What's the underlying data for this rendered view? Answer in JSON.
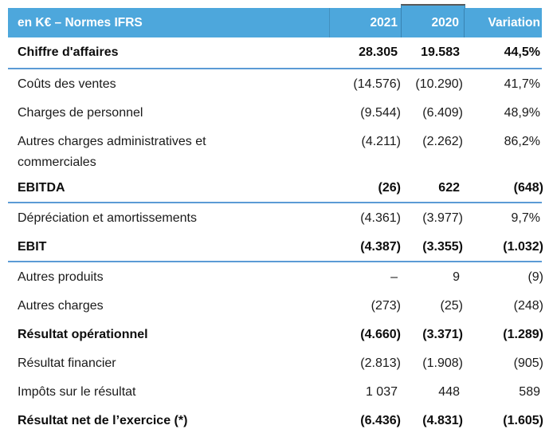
{
  "table": {
    "unit_header": "en K€ – Normes IFRS",
    "columns": [
      "2021",
      "2020",
      "Variation"
    ],
    "rows": [
      {
        "label": [
          "Chiffre d'affaires"
        ],
        "v2021": "28.305",
        "v2020": "19.583",
        "variation": "44,5%",
        "bold": true,
        "divider_below": true
      },
      {
        "label": [
          "Coûts des ventes"
        ],
        "v2021": "(14.576)",
        "v2020": "(10.290)",
        "variation": "41,7%",
        "bold": false,
        "divider_below": false
      },
      {
        "label": [
          "Charges de personnel"
        ],
        "v2021": "(9.544)",
        "v2020": "(6.409)",
        "variation": "48,9%",
        "bold": false,
        "divider_below": false
      },
      {
        "label": [
          "Autres charges administratives et",
          "commerciales"
        ],
        "v2021": "(4.211)",
        "v2020": "(2.262)",
        "variation": "86,2%",
        "bold": false,
        "divider_below": false
      },
      {
        "label": [
          "EBITDA"
        ],
        "v2021": "(26)",
        "v2020": "622",
        "variation": "(648)",
        "bold": true,
        "divider_below": true
      },
      {
        "label": [
          "Dépréciation et amortissements"
        ],
        "v2021": "(4.361)",
        "v2020": "(3.977)",
        "variation": "9,7%",
        "bold": false,
        "divider_below": false
      },
      {
        "label": [
          "EBIT"
        ],
        "v2021": "(4.387)",
        "v2020": "(3.355)",
        "variation": "(1.032)",
        "bold": true,
        "divider_below": true
      },
      {
        "label": [
          "Autres produits"
        ],
        "v2021": "–",
        "v2020": "9",
        "variation": "(9)",
        "bold": false,
        "divider_below": false
      },
      {
        "label": [
          "Autres charges"
        ],
        "v2021": "(273)",
        "v2020": "(25)",
        "variation": "(248)",
        "bold": false,
        "divider_below": false
      },
      {
        "label": [
          "Résultat opérationnel"
        ],
        "v2021": "(4.660)",
        "v2020": "(3.371)",
        "variation": "(1.289)",
        "bold": true,
        "divider_below": false
      },
      {
        "label": [
          "Résultat financier"
        ],
        "v2021": "(2.813)",
        "v2020": "(1.908)",
        "variation": "(905)",
        "bold": false,
        "divider_below": false
      },
      {
        "label": [
          "Impôts sur le résultat"
        ],
        "v2021": "1 037",
        "v2020": "448",
        "variation": "589",
        "bold": false,
        "divider_below": false
      },
      {
        "label": [
          "Résultat net de l’exercice (*)"
        ],
        "v2021": "(6.436)",
        "v2020": "(4.831)",
        "variation": "(1.605)",
        "bold": true,
        "divider_below": false
      }
    ],
    "colors": {
      "header_bg": "#4DA7DC",
      "header_text": "#ffffff",
      "divider": "#5B9BD5",
      "body_text": "#1a1a1a",
      "selection_cap": "#595959"
    }
  }
}
